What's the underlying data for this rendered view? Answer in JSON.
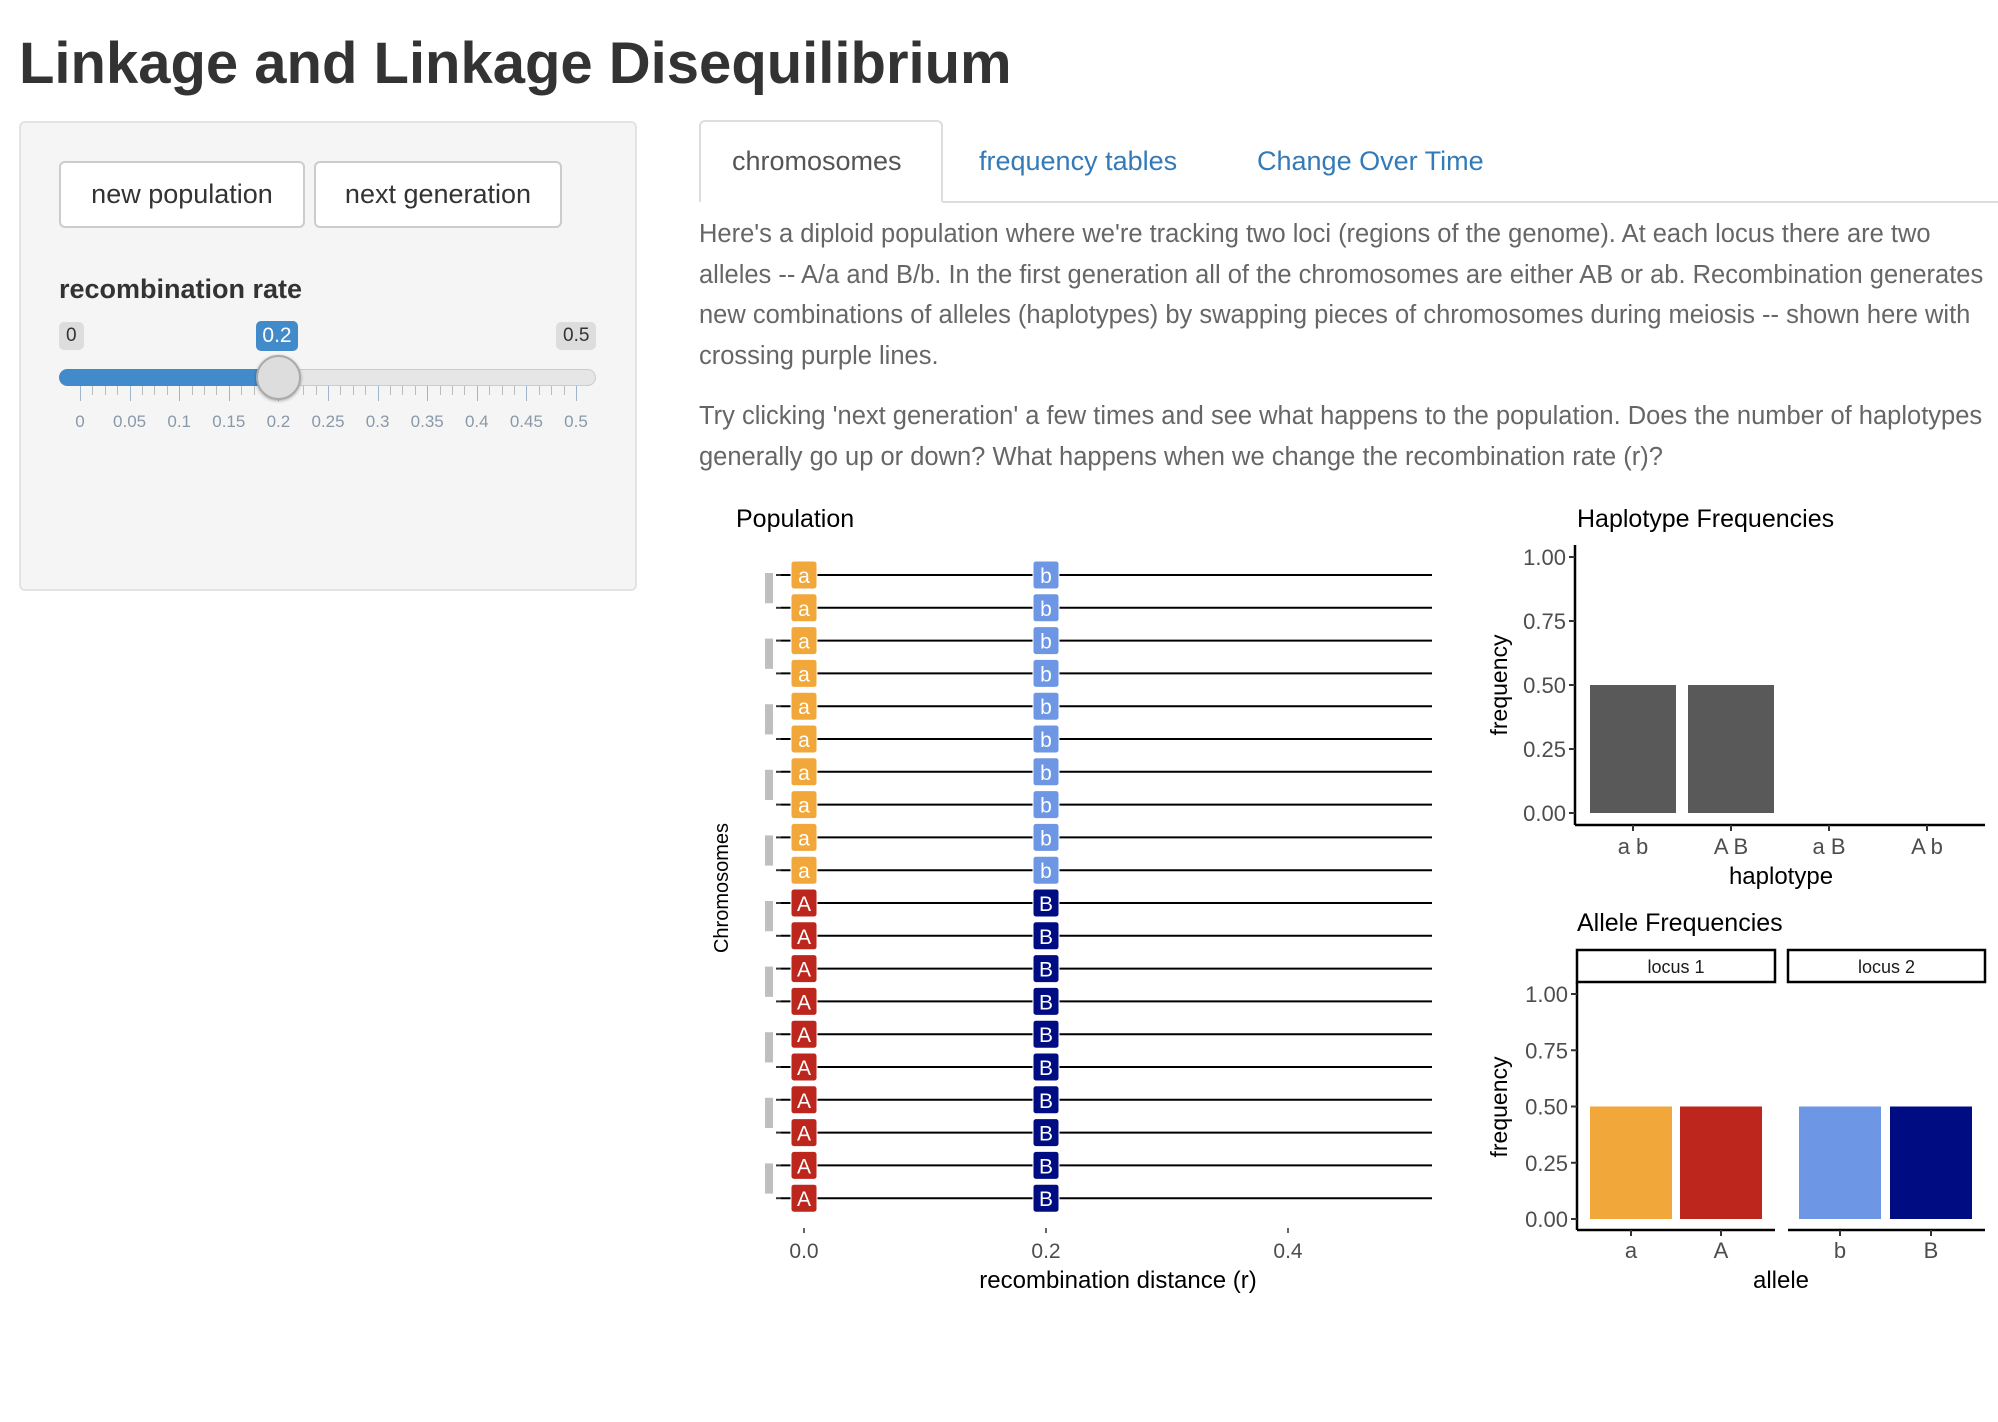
{
  "title": "Linkage and Linkage Disequilibrium",
  "sidebar": {
    "buttons": {
      "new_population": "new population",
      "next_generation": "next generation"
    },
    "slider": {
      "label": "recombination rate",
      "min": "0",
      "max": "0.5",
      "value": "0.2",
      "value_num": 0.2,
      "ticks": [
        "0",
        "0.05",
        "0.1",
        "0.15",
        "0.2",
        "0.25",
        "0.3",
        "0.35",
        "0.4",
        "0.45",
        "0.5"
      ]
    }
  },
  "tabs": [
    {
      "label": "chromosomes",
      "active": true
    },
    {
      "label": "frequency tables"
    },
    {
      "label": "Change Over Time"
    }
  ],
  "content": {
    "para1": "Here's a diploid population where we're tracking two loci (regions of the genome). At each locus there are two alleles -- A/a and B/b. In the first generation all of the chromosomes are either AB or ab. Recombination generates new combinations of alleles (haplotypes) by swapping pieces of chromosomes during meiosis -- shown here with crossing purple lines.",
    "para2": "Try clicking 'next generation' a few times and see what happens to the population. Does the number of haplotypes generally go up or down? What happens when we change the recombination rate (r)?"
  },
  "colors": {
    "a": "#F2A73B",
    "A": "#BD261D",
    "b": "#6D96E5",
    "B": "#000C82",
    "bar": "#595959"
  },
  "chart_data": [
    {
      "type": "scatter",
      "title": "Population",
      "xlabel": "recombination distance (r)",
      "ylabel": "Chromosomes",
      "xticks": [
        "0.0",
        "0.2",
        "0.4"
      ],
      "xlim": [
        -0.013,
        0.52
      ],
      "locus_positions": [
        0,
        0.2
      ],
      "chromosomes": [
        "ab",
        "ab",
        "ab",
        "ab",
        "ab",
        "ab",
        "ab",
        "ab",
        "ab",
        "ab",
        "AB",
        "AB",
        "AB",
        "AB",
        "AB",
        "AB",
        "AB",
        "AB",
        "AB",
        "AB"
      ]
    },
    {
      "type": "bar",
      "title": "Haplotype Frequencies",
      "xlabel": "haplotype",
      "ylabel": "frequency",
      "categories": [
        "a b",
        "A B",
        "a B",
        "A b"
      ],
      "values": [
        0.5,
        0.5,
        0,
        0
      ],
      "ylim": [
        0,
        1
      ],
      "yticks": [
        "0.00",
        "0.25",
        "0.50",
        "0.75",
        "1.00"
      ]
    },
    {
      "type": "bar",
      "title": "Allele Frequencies",
      "xlabel": "allele",
      "ylabel": "frequency",
      "ylim": [
        0,
        1
      ],
      "yticks": [
        "0.00",
        "0.25",
        "0.50",
        "0.75",
        "1.00"
      ],
      "facets": [
        {
          "label": "locus 1",
          "categories": [
            "a",
            "A"
          ],
          "values": [
            0.5,
            0.5
          ]
        },
        {
          "label": "locus 2",
          "categories": [
            "b",
            "B"
          ],
          "values": [
            0.5,
            0.5
          ]
        }
      ]
    }
  ]
}
